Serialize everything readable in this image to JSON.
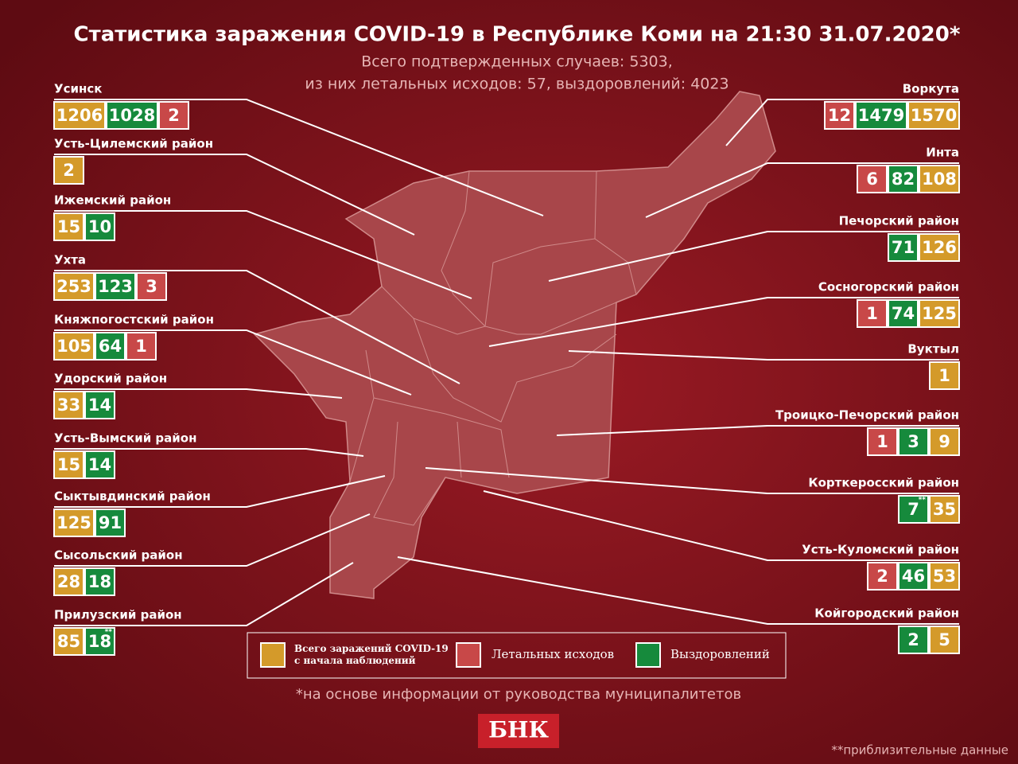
{
  "header": {
    "title": "Статистика заражения COVID-19 в Республике Коми на 21:30 31.07.2020*",
    "subtitle": [
      "Всего подтвержденных случаев: 5303,",
      "из них летальных исходов: 57, выздоровлений: 4023"
    ]
  },
  "regions_left": [
    {
      "name": "Усинск",
      "stats": [
        {
          "value": 1206,
          "color": "#d49a2a"
        },
        {
          "value": 1028,
          "color": "#168a3c"
        },
        {
          "value": 2,
          "color": "#c84848"
        }
      ]
    },
    {
      "name": "Усть-Цилемский район",
      "stats": [
        {
          "value": 2,
          "color": "#d49a2a"
        }
      ]
    },
    {
      "name": "Ижемский район",
      "stats": [
        {
          "value": 15,
          "color": "#d49a2a"
        },
        {
          "value": 10,
          "color": "#168a3c"
        }
      ]
    },
    {
      "name": "Ухта",
      "stats": [
        {
          "value": 253,
          "color": "#d49a2a"
        },
        {
          "value": 123,
          "color": "#168a3c"
        },
        {
          "value": 3,
          "color": "#c84848"
        }
      ]
    },
    {
      "name": "Княжпогостский район",
      "stats": [
        {
          "value": 105,
          "color": "#d49a2a"
        },
        {
          "value": 64,
          "color": "#168a3c"
        },
        {
          "value": 1,
          "color": "#c84848"
        }
      ]
    },
    {
      "name": "Удорский район",
      "stats": [
        {
          "value": 33,
          "color": "#d49a2a"
        },
        {
          "value": 14,
          "color": "#168a3c"
        }
      ]
    },
    {
      "name": "Усть-Вымский район",
      "stats": [
        {
          "value": 15,
          "color": "#d49a2a"
        },
        {
          "value": 14,
          "color": "#168a3c"
        }
      ]
    },
    {
      "name": "Сыктывдинский район",
      "stats": [
        {
          "value": 125,
          "color": "#d49a2a"
        },
        {
          "value": 91,
          "color": "#168a3c"
        }
      ]
    },
    {
      "name": "Сысольский район",
      "stats": [
        {
          "value": 28,
          "color": "#d49a2a"
        },
        {
          "value": 18,
          "color": "#168a3c"
        }
      ]
    },
    {
      "name": "Прилузский район",
      "stats": [
        {
          "value": 85,
          "color": "#d49a2a"
        },
        {
          "value": 18,
          "color": "#168a3c",
          "note": "**"
        }
      ]
    }
  ],
  "regions_right": [
    {
      "name": "Воркута",
      "stats": [
        {
          "value": 12,
          "color": "#c84848"
        },
        {
          "value": 1479,
          "color": "#168a3c"
        },
        {
          "value": 1570,
          "color": "#d49a2a"
        }
      ]
    },
    {
      "name": "Инта",
      "stats": [
        {
          "value": 6,
          "color": "#c84848"
        },
        {
          "value": 82,
          "color": "#168a3c"
        },
        {
          "value": 108,
          "color": "#d49a2a"
        }
      ]
    },
    {
      "name": "Печорский район",
      "stats": [
        {
          "value": 71,
          "color": "#168a3c"
        },
        {
          "value": 126,
          "color": "#d49a2a"
        }
      ]
    },
    {
      "name": "Сосногорский район",
      "stats": [
        {
          "value": 1,
          "color": "#c84848"
        },
        {
          "value": 74,
          "color": "#168a3c"
        },
        {
          "value": 125,
          "color": "#d49a2a"
        }
      ]
    },
    {
      "name": "Вуктыл",
      "stats": [
        {
          "value": 1,
          "color": "#d49a2a"
        }
      ]
    },
    {
      "name": "Троицко-Печорский район",
      "stats": [
        {
          "value": 1,
          "color": "#c84848"
        },
        {
          "value": 3,
          "color": "#168a3c"
        },
        {
          "value": 9,
          "color": "#d49a2a"
        }
      ]
    },
    {
      "name": "Корткеросский район",
      "stats": [
        {
          "value": 7,
          "color": "#168a3c",
          "note": "**"
        },
        {
          "value": 35,
          "color": "#d49a2a"
        }
      ]
    },
    {
      "name": "Усть-Куломский район",
      "stats": [
        {
          "value": 2,
          "color": "#c84848"
        },
        {
          "value": 46,
          "color": "#168a3c"
        },
        {
          "value": 53,
          "color": "#d49a2a"
        }
      ]
    },
    {
      "name": "Койгородский район",
      "stats": [
        {
          "value": 2,
          "color": "#168a3c"
        },
        {
          "value": 5,
          "color": "#d49a2a"
        }
      ]
    }
  ],
  "legend": [
    {
      "label": [
        "Всего заражений COVID-19",
        "с начала наблюдений"
      ],
      "color": "#d49a2a"
    },
    {
      "label": [
        "Летальных исходов"
      ],
      "color": "#c84848"
    },
    {
      "label": [
        "Выздоровлений"
      ],
      "color": "#168a3c"
    }
  ],
  "footnote": "*на основе информации от руководства муниципалитетов",
  "logo": "БНК",
  "note": "**приблизительные данные"
}
